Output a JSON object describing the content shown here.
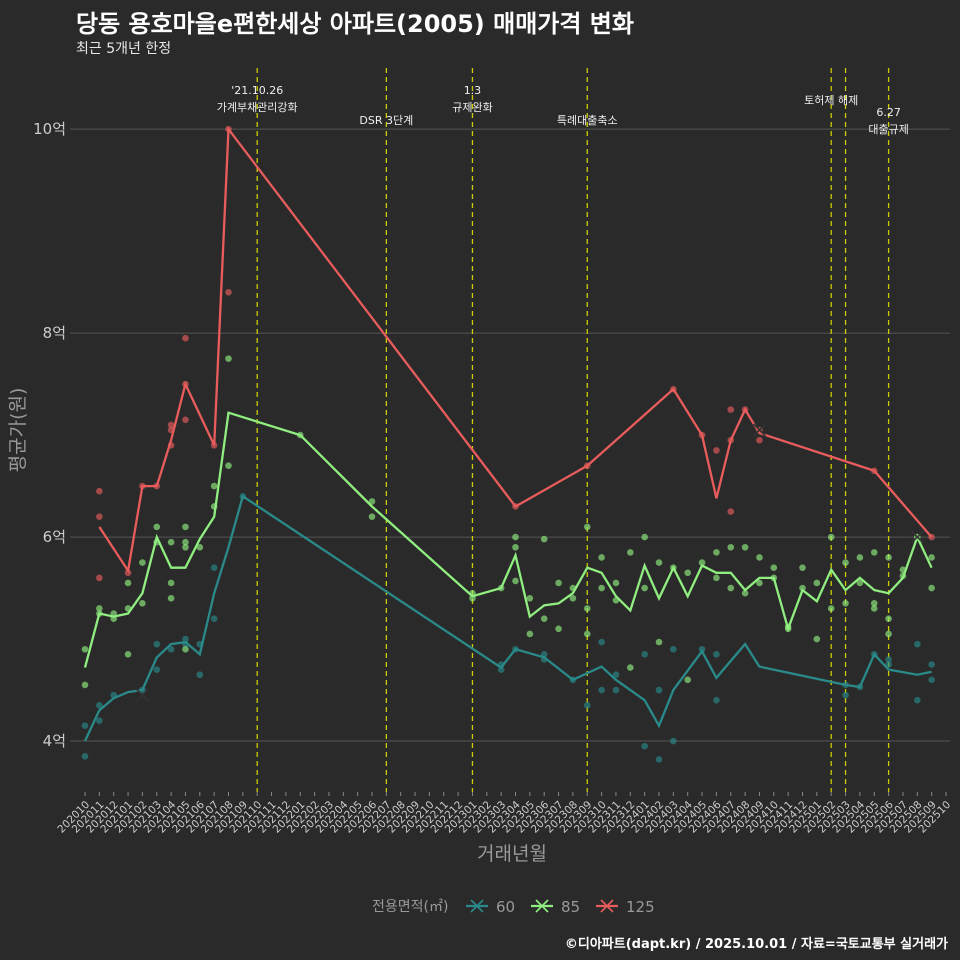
{
  "title": "당동 용호마을e편한세상 아파트(2005) 매매가격 변화",
  "subtitle": "최근 5개년 한정",
  "footer": "©디아파트(dapt.kr) / 2025.10.01 / 자료=국토교통부 실거래가",
  "colors": {
    "s60": "#2a8a8a",
    "s85": "#90ee80",
    "s125": "#e85c5c",
    "vline": "#cccc00",
    "grid": "#555555",
    "text": "#cccccc"
  },
  "chart_data": {
    "type": "line",
    "title": "당동 용호마을e편한세상 아파트(2005) 매매가격 변화",
    "xlabel": "거래년월",
    "ylabel": "평균가(원)",
    "ylim": [
      3.5,
      10.6
    ],
    "yticks": [
      4,
      6,
      8,
      10
    ],
    "ytick_labels": [
      "4억",
      "6억",
      "8억",
      "10억"
    ],
    "x_categories": [
      "202010",
      "202011",
      "202012",
      "202101",
      "202102",
      "202103",
      "202104",
      "202105",
      "202106",
      "202107",
      "202108",
      "202109",
      "202110",
      "202111",
      "202112",
      "202201",
      "202202",
      "202203",
      "202204",
      "202205",
      "202206",
      "202207",
      "202208",
      "202209",
      "202210",
      "202211",
      "202212",
      "202301",
      "202302",
      "202303",
      "202304",
      "202305",
      "202306",
      "202307",
      "202308",
      "202309",
      "202310",
      "202311",
      "202312",
      "202401",
      "202402",
      "202403",
      "202404",
      "202405",
      "202406",
      "202407",
      "202408",
      "202409",
      "202410",
      "202411",
      "202412",
      "202501",
      "202502",
      "202503",
      "202504",
      "202505",
      "202506",
      "202507",
      "202508",
      "202509",
      "202510"
    ],
    "legend_title": "전용면적(㎡)",
    "series": [
      {
        "name": "60",
        "color": "#2a8a8a",
        "line": [
          [
            0,
            4.0
          ],
          [
            1,
            4.3
          ],
          [
            2,
            4.42
          ],
          [
            3,
            4.48
          ],
          [
            4,
            4.5
          ],
          [
            5,
            4.82
          ],
          [
            6,
            4.95
          ],
          [
            7,
            4.97
          ],
          [
            8,
            4.85
          ],
          [
            9,
            5.45
          ],
          [
            10,
            5.9
          ],
          [
            11,
            6.4
          ],
          [
            29,
            4.72
          ],
          [
            30,
            4.9
          ],
          [
            32,
            4.82
          ],
          [
            34,
            4.6
          ],
          [
            36,
            4.73
          ],
          [
            37,
            4.6
          ],
          [
            39,
            4.4
          ],
          [
            40,
            4.15
          ],
          [
            41,
            4.5
          ],
          [
            43,
            4.88
          ],
          [
            44,
            4.62
          ],
          [
            46,
            4.95
          ],
          [
            47,
            4.73
          ],
          [
            53,
            4.55
          ],
          [
            54,
            4.53
          ],
          [
            55,
            4.85
          ],
          [
            56,
            4.7
          ],
          [
            58,
            4.65
          ],
          [
            59,
            4.68
          ]
        ],
        "points": [
          [
            0,
            4.15
          ],
          [
            0,
            3.85
          ],
          [
            1,
            4.2
          ],
          [
            1,
            4.35
          ],
          [
            2,
            4.45
          ],
          [
            4,
            4.5
          ],
          [
            5,
            4.95
          ],
          [
            5,
            4.7
          ],
          [
            6,
            4.9
          ],
          [
            7,
            4.95
          ],
          [
            7,
            5.0
          ],
          [
            8,
            4.65
          ],
          [
            8,
            4.95
          ],
          [
            9,
            5.7
          ],
          [
            9,
            5.2
          ],
          [
            11,
            6.4
          ],
          [
            29,
            4.75
          ],
          [
            29,
            4.7
          ],
          [
            30,
            4.9
          ],
          [
            32,
            4.85
          ],
          [
            32,
            4.8
          ],
          [
            34,
            4.6
          ],
          [
            35,
            4.35
          ],
          [
            36,
            4.97
          ],
          [
            36,
            4.5
          ],
          [
            37,
            4.5
          ],
          [
            37,
            4.65
          ],
          [
            39,
            3.95
          ],
          [
            39,
            4.85
          ],
          [
            40,
            3.82
          ],
          [
            40,
            4.5
          ],
          [
            41,
            4.0
          ],
          [
            41,
            4.9
          ],
          [
            43,
            4.9
          ],
          [
            44,
            4.85
          ],
          [
            44,
            4.4
          ],
          [
            53,
            4.45
          ],
          [
            53,
            4.55
          ],
          [
            54,
            4.53
          ],
          [
            55,
            4.85
          ],
          [
            56,
            4.75
          ],
          [
            56,
            4.8
          ],
          [
            58,
            4.4
          ],
          [
            58,
            4.95
          ],
          [
            59,
            4.6
          ],
          [
            59,
            4.75
          ]
        ],
        "last": [
          4,
          4.45
        ]
      },
      {
        "name": "85",
        "color": "#90ee80",
        "line": [
          [
            0,
            4.72
          ],
          [
            1,
            5.25
          ],
          [
            2,
            5.22
          ],
          [
            3,
            5.25
          ],
          [
            4,
            5.45
          ],
          [
            5,
            6.0
          ],
          [
            6,
            5.7
          ],
          [
            7,
            5.7
          ],
          [
            8,
            5.98
          ],
          [
            9,
            6.2
          ],
          [
            10,
            7.22
          ],
          [
            15,
            7.0
          ],
          [
            20,
            6.3
          ],
          [
            27,
            5.42
          ],
          [
            29,
            5.5
          ],
          [
            30,
            5.82
          ],
          [
            31,
            5.22
          ],
          [
            32,
            5.33
          ],
          [
            33,
            5.35
          ],
          [
            34,
            5.45
          ],
          [
            35,
            5.7
          ],
          [
            36,
            5.65
          ],
          [
            37,
            5.42
          ],
          [
            38,
            5.28
          ],
          [
            39,
            5.72
          ],
          [
            40,
            5.4
          ],
          [
            41,
            5.7
          ],
          [
            42,
            5.42
          ],
          [
            43,
            5.72
          ],
          [
            44,
            5.65
          ],
          [
            45,
            5.65
          ],
          [
            46,
            5.48
          ],
          [
            47,
            5.6
          ],
          [
            48,
            5.6
          ],
          [
            49,
            5.1
          ],
          [
            50,
            5.48
          ],
          [
            51,
            5.37
          ],
          [
            52,
            5.68
          ],
          [
            53,
            5.48
          ],
          [
            54,
            5.6
          ],
          [
            55,
            5.48
          ],
          [
            56,
            5.45
          ],
          [
            57,
            5.6
          ],
          [
            58,
            6.0
          ],
          [
            59,
            5.7
          ]
        ],
        "points": [
          [
            0,
            4.9
          ],
          [
            0,
            4.55
          ],
          [
            1,
            5.3
          ],
          [
            1,
            5.25
          ],
          [
            2,
            5.2
          ],
          [
            2,
            5.25
          ],
          [
            3,
            5.55
          ],
          [
            3,
            4.85
          ],
          [
            3,
            5.3
          ],
          [
            4,
            5.75
          ],
          [
            4,
            5.35
          ],
          [
            5,
            6.1
          ],
          [
            5,
            5.95
          ],
          [
            6,
            5.95
          ],
          [
            6,
            5.4
          ],
          [
            6,
            5.55
          ],
          [
            7,
            6.1
          ],
          [
            7,
            5.95
          ],
          [
            7,
            5.9
          ],
          [
            7,
            4.9
          ],
          [
            8,
            5.9
          ],
          [
            9,
            6.5
          ],
          [
            9,
            6.3
          ],
          [
            10,
            7.75
          ],
          [
            10,
            6.7
          ],
          [
            15,
            7.0
          ],
          [
            20,
            6.35
          ],
          [
            20,
            6.2
          ],
          [
            27,
            5.45
          ],
          [
            27,
            5.4
          ],
          [
            29,
            5.5
          ],
          [
            30,
            6.0
          ],
          [
            30,
            5.9
          ],
          [
            30,
            5.57
          ],
          [
            31,
            5.05
          ],
          [
            31,
            5.4
          ],
          [
            32,
            5.98
          ],
          [
            32,
            5.2
          ],
          [
            33,
            5.55
          ],
          [
            33,
            5.1
          ],
          [
            34,
            5.4
          ],
          [
            34,
            5.5
          ],
          [
            35,
            6.1
          ],
          [
            35,
            5.05
          ],
          [
            35,
            5.3
          ],
          [
            36,
            5.8
          ],
          [
            36,
            5.5
          ],
          [
            37,
            5.55
          ],
          [
            37,
            5.38
          ],
          [
            38,
            5.85
          ],
          [
            38,
            4.72
          ],
          [
            39,
            6.0
          ],
          [
            39,
            5.5
          ],
          [
            40,
            5.75
          ],
          [
            40,
            4.97
          ],
          [
            41,
            5.7
          ],
          [
            42,
            5.65
          ],
          [
            42,
            4.6
          ],
          [
            43,
            5.75
          ],
          [
            44,
            5.85
          ],
          [
            44,
            5.6
          ],
          [
            45,
            5.9
          ],
          [
            45,
            5.5
          ],
          [
            46,
            5.9
          ],
          [
            46,
            5.45
          ],
          [
            47,
            5.8
          ],
          [
            47,
            5.55
          ],
          [
            48,
            5.7
          ],
          [
            48,
            5.6
          ],
          [
            49,
            5.12
          ],
          [
            49,
            5.1
          ],
          [
            50,
            5.5
          ],
          [
            50,
            5.7
          ],
          [
            51,
            5.0
          ],
          [
            51,
            5.55
          ],
          [
            52,
            6.0
          ],
          [
            52,
            5.3
          ],
          [
            53,
            5.75
          ],
          [
            53,
            5.35
          ],
          [
            54,
            5.8
          ],
          [
            54,
            5.55
          ],
          [
            55,
            5.85
          ],
          [
            55,
            5.35
          ],
          [
            55,
            5.3
          ],
          [
            56,
            5.8
          ],
          [
            56,
            5.2
          ],
          [
            56,
            5.05
          ],
          [
            57,
            5.62
          ],
          [
            57,
            5.68
          ],
          [
            58,
            6.0
          ],
          [
            59,
            5.8
          ],
          [
            59,
            5.5
          ]
        ],
        "last": [
          58,
          6.0
        ]
      },
      {
        "name": "125",
        "color": "#e85c5c",
        "line": [
          [
            1,
            6.1
          ],
          [
            3,
            5.67
          ],
          [
            4,
            6.5
          ],
          [
            5,
            6.5
          ],
          [
            6,
            6.95
          ],
          [
            7,
            7.5
          ],
          [
            9,
            6.9
          ],
          [
            10,
            10.0
          ],
          [
            30,
            6.3
          ],
          [
            35,
            6.7
          ],
          [
            41,
            7.45
          ],
          [
            43,
            7.0
          ],
          [
            44,
            6.38
          ],
          [
            45,
            6.95
          ],
          [
            46,
            7.25
          ],
          [
            47,
            7.02
          ],
          [
            55,
            6.65
          ],
          [
            59,
            6.0
          ]
        ],
        "points": [
          [
            1,
            6.45
          ],
          [
            1,
            6.2
          ],
          [
            1,
            5.6
          ],
          [
            3,
            5.65
          ],
          [
            4,
            6.5
          ],
          [
            5,
            6.5
          ],
          [
            6,
            7.1
          ],
          [
            6,
            6.9
          ],
          [
            6,
            7.05
          ],
          [
            7,
            7.95
          ],
          [
            7,
            7.15
          ],
          [
            7,
            7.5
          ],
          [
            9,
            6.9
          ],
          [
            10,
            8.4
          ],
          [
            10,
            10.0
          ],
          [
            30,
            6.3
          ],
          [
            35,
            6.7
          ],
          [
            41,
            7.45
          ],
          [
            43,
            7.0
          ],
          [
            44,
            6.85
          ],
          [
            45,
            7.25
          ],
          [
            45,
            6.95
          ],
          [
            45,
            6.25
          ],
          [
            46,
            7.25
          ],
          [
            47,
            6.95
          ],
          [
            47,
            7.05
          ],
          [
            55,
            6.65
          ],
          [
            59,
            6.0
          ]
        ],
        "last": [
          47,
          7.05
        ]
      }
    ],
    "annotations": [
      {
        "x": 12,
        "lines": [
          "'21.10.26",
          "가계부채관리강화"
        ]
      },
      {
        "x": 21,
        "lines": [
          "DSR 3단계"
        ]
      },
      {
        "x": 27,
        "lines": [
          "1.3",
          "규제완화"
        ]
      },
      {
        "x": 35,
        "lines": [
          "특례대출축소"
        ]
      },
      {
        "x": 52,
        "lines": [
          "토허제 해제"
        ]
      },
      {
        "x": 53,
        "lines": []
      },
      {
        "x": 56,
        "lines": [
          "6.27",
          "대출규제"
        ]
      }
    ]
  }
}
